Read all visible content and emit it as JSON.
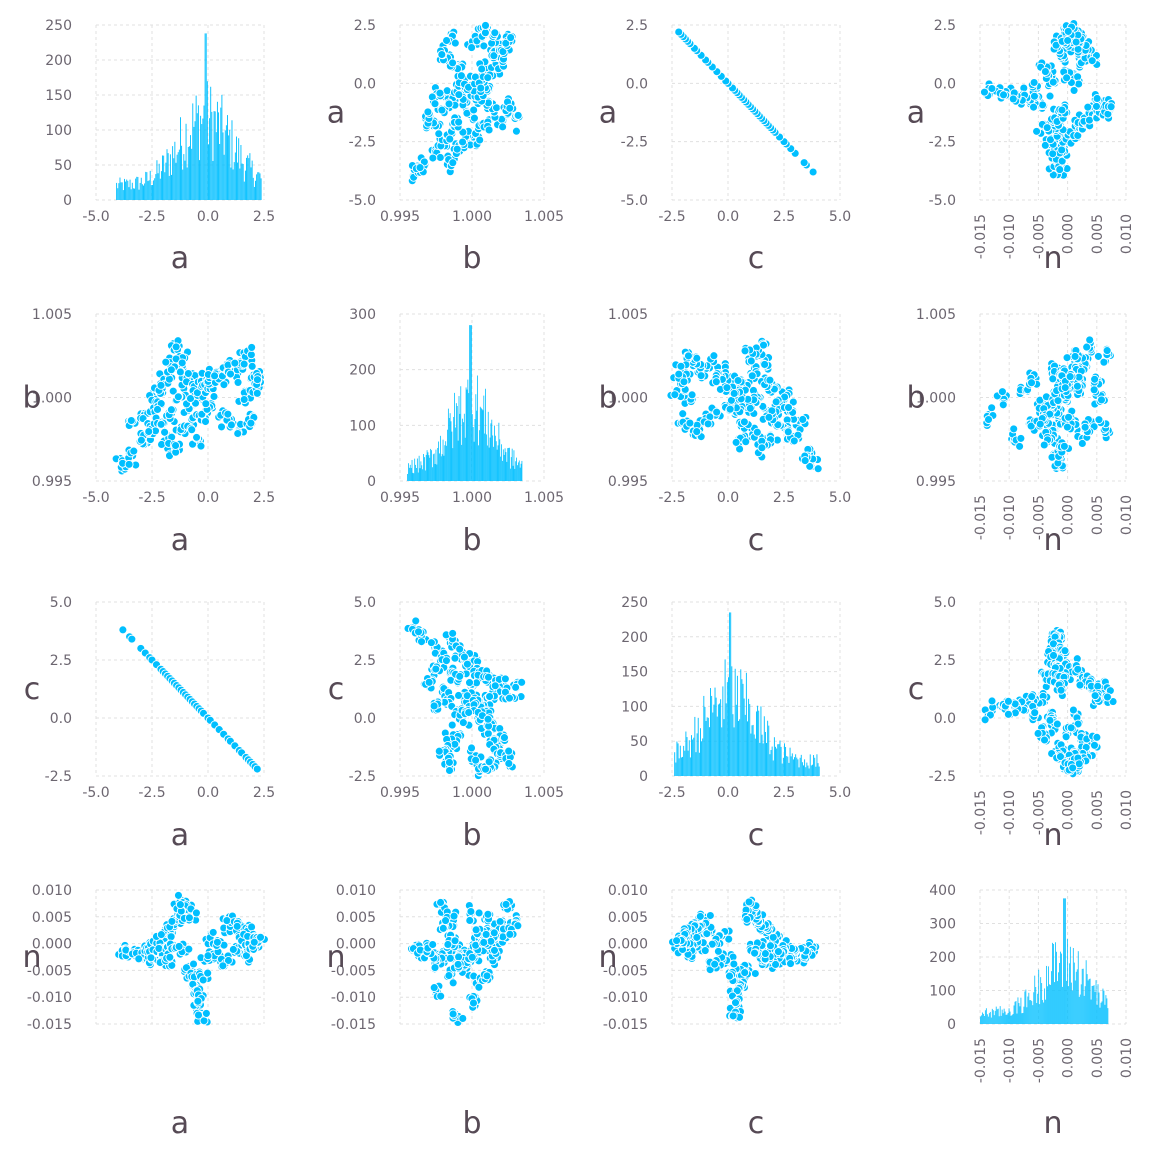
{
  "colors": {
    "series": "#00bfff",
    "point_stroke": "#ffffff",
    "text": "#564a55",
    "tick": "#6c6670",
    "grid": "#e0e0e0"
  },
  "chart_data": {
    "type": "scatter",
    "variables": [
      "a",
      "b",
      "c",
      "n"
    ],
    "grid": true,
    "axes": {
      "a": {
        "range": [
          -5.0,
          2.5
        ],
        "ticks": [
          -5.0,
          -2.5,
          0.0,
          2.5
        ],
        "tick_labels": [
          "-5.0",
          "-2.5",
          "0.0",
          "2.5"
        ]
      },
      "b": {
        "range": [
          0.995,
          1.005
        ],
        "ticks": [
          0.995,
          1.0,
          1.005
        ],
        "tick_labels": [
          "0.995",
          "1.000",
          "1.005"
        ]
      },
      "c": {
        "range": [
          -2.5,
          5.0
        ],
        "ticks": [
          -2.5,
          0.0,
          2.5,
          5.0
        ],
        "tick_labels": [
          "-2.5",
          "0.0",
          "2.5",
          "5.0"
        ]
      },
      "n": {
        "range": [
          -0.015,
          0.01
        ],
        "ticks": [
          -0.015,
          -0.01,
          -0.005,
          0.0,
          0.005,
          0.01
        ],
        "tick_labels": [
          "-0.015",
          "-0.010",
          "-0.005",
          "0.000",
          "0.005",
          "0.010"
        ],
        "rotate_x_ticks": true
      }
    },
    "histograms": {
      "a": {
        "ylim": [
          0,
          250
        ],
        "yticks": [
          0,
          50,
          100,
          150,
          200,
          250
        ],
        "range": [
          -4.1,
          2.4
        ],
        "peak_at": -0.1,
        "peak_count": 238
      },
      "b": {
        "ylim": [
          0,
          300
        ],
        "yticks": [
          0,
          100,
          200,
          300
        ],
        "range": [
          0.9955,
          1.0035
        ],
        "peak_at": 0.9999,
        "peak_count": 280
      },
      "c": {
        "ylim": [
          0,
          250
        ],
        "yticks": [
          0,
          50,
          100,
          150,
          200,
          250
        ],
        "range": [
          -2.4,
          4.1
        ],
        "peak_at": 0.1,
        "peak_count": 235
      },
      "n": {
        "ylim": [
          0,
          400
        ],
        "yticks": [
          0,
          100,
          200,
          300,
          400
        ],
        "range": [
          -0.015,
          0.007
        ],
        "peak_at": -0.0005,
        "peak_count": 375
      }
    },
    "scatter_pairs": [
      {
        "x": "a",
        "y": "b"
      },
      {
        "x": "a",
        "y": "c"
      },
      {
        "x": "a",
        "y": "n"
      },
      {
        "x": "b",
        "y": "a"
      },
      {
        "x": "b",
        "y": "c"
      },
      {
        "x": "b",
        "y": "n"
      },
      {
        "x": "c",
        "y": "a"
      },
      {
        "x": "c",
        "y": "b"
      },
      {
        "x": "c",
        "y": "n"
      },
      {
        "x": "n",
        "y": "a"
      },
      {
        "x": "n",
        "y": "b"
      },
      {
        "x": "n",
        "y": "c"
      }
    ],
    "sample_points": [
      {
        "a": -3.8,
        "b": 0.996,
        "c": 3.8,
        "n": -0.0012
      },
      {
        "a": -3.5,
        "b": 0.9965,
        "c": 3.5,
        "n": -0.002
      },
      {
        "a": -3.4,
        "b": 0.9985,
        "c": 3.4,
        "n": -0.0016
      },
      {
        "a": -3.0,
        "b": 0.9975,
        "c": 3.0,
        "n": -0.0024
      },
      {
        "a": -2.8,
        "b": 0.999,
        "c": 2.8,
        "n": -0.001
      },
      {
        "a": -2.6,
        "b": 0.998,
        "c": 2.6,
        "n": -0.003
      },
      {
        "a": -2.5,
        "b": 1.0,
        "c": 2.5,
        "n": -0.0005
      },
      {
        "a": -2.3,
        "b": 0.9995,
        "c": 2.3,
        "n": -0.002
      },
      {
        "a": -2.1,
        "b": 0.9985,
        "c": 2.1,
        "n": 0.001
      },
      {
        "a": -2.0,
        "b": 1.0005,
        "c": 2.0,
        "n": -0.0015
      },
      {
        "a": -1.9,
        "b": 0.9975,
        "c": 1.9,
        "n": -0.0035
      },
      {
        "a": -1.8,
        "b": 1.001,
        "c": 1.8,
        "n": 0.002
      },
      {
        "a": -1.7,
        "b": 0.999,
        "c": 1.7,
        "n": -0.0025
      },
      {
        "a": -1.6,
        "b": 1.002,
        "c": 1.6,
        "n": 0.003
      },
      {
        "a": -1.5,
        "b": 0.997,
        "c": 1.5,
        "n": -0.0008
      },
      {
        "a": -1.4,
        "b": 1.003,
        "c": 1.4,
        "n": 0.004
      },
      {
        "a": -1.3,
        "b": 1.0,
        "c": 1.3,
        "n": 0.0055
      },
      {
        "a": -1.2,
        "b": 1.0015,
        "c": 1.2,
        "n": -0.0012
      },
      {
        "a": -1.1,
        "b": 0.998,
        "c": 1.1,
        "n": 0.0065
      },
      {
        "a": -1.0,
        "b": 1.0025,
        "c": 1.0,
        "n": 0.007
      },
      {
        "a": -0.9,
        "b": 0.9995,
        "c": 0.9,
        "n": -0.0045
      },
      {
        "a": -0.8,
        "b": 1.001,
        "c": 0.8,
        "n": 0.005
      },
      {
        "a": -0.7,
        "b": 0.9985,
        "c": 0.7,
        "n": -0.006
      },
      {
        "a": -0.6,
        "b": 1.0005,
        "c": 0.6,
        "n": -0.0075
      },
      {
        "a": -0.5,
        "b": 0.9975,
        "c": 0.5,
        "n": -0.009
      },
      {
        "a": -0.4,
        "b": 1.0,
        "c": 0.4,
        "n": -0.011
      },
      {
        "a": -0.3,
        "b": 0.999,
        "c": 0.3,
        "n": -0.0135
      },
      {
        "a": -0.2,
        "b": 1.001,
        "c": 0.2,
        "n": -0.006
      },
      {
        "a": 0.0,
        "b": 0.9995,
        "c": 0.0,
        "n": -0.003
      },
      {
        "a": 0.1,
        "b": 1.0005,
        "c": -0.1,
        "n": 0.0015
      },
      {
        "a": 0.3,
        "b": 1.0015,
        "c": -0.3,
        "n": -0.0025
      },
      {
        "a": 0.5,
        "b": 1.001,
        "c": -0.5,
        "n": 0.0
      },
      {
        "a": 0.7,
        "b": 0.999,
        "c": -0.7,
        "n": -0.004
      },
      {
        "a": 0.9,
        "b": 1.002,
        "c": -0.9,
        "n": 0.0025
      },
      {
        "a": 1.0,
        "b": 0.9985,
        "c": -1.0,
        "n": 0.0045
      },
      {
        "a": 1.2,
        "b": 1.0015,
        "c": -1.2,
        "n": -0.001
      },
      {
        "a": 1.4,
        "b": 0.998,
        "c": -1.4,
        "n": 0.003
      },
      {
        "a": 1.5,
        "b": 1.002,
        "c": -1.5,
        "n": 0.001
      },
      {
        "a": 1.7,
        "b": 1.0,
        "c": -1.7,
        "n": -0.002
      },
      {
        "a": 1.8,
        "b": 1.0025,
        "c": -1.8,
        "n": 0.002
      },
      {
        "a": 1.9,
        "b": 0.9985,
        "c": -1.9,
        "n": 0.0
      },
      {
        "a": 2.0,
        "b": 1.0015,
        "c": -2.0,
        "n": 0.0015
      },
      {
        "a": 2.1,
        "b": 1.0005,
        "c": -2.1,
        "n": -0.0005
      },
      {
        "a": 2.2,
        "b": 1.001,
        "c": -2.2,
        "n": 0.0005
      }
    ]
  }
}
